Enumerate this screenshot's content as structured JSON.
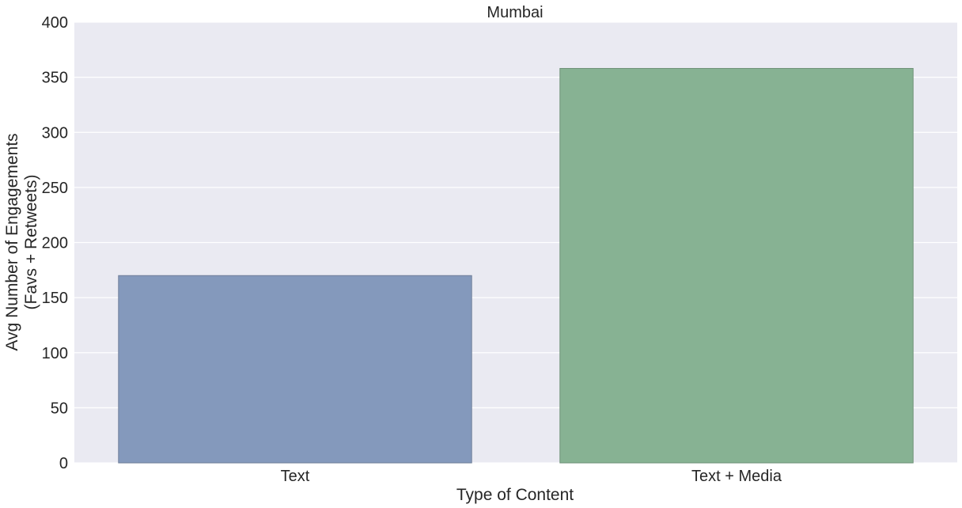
{
  "chart_data": {
    "type": "bar",
    "title": "Mumbai",
    "xlabel": "Type of Content",
    "ylabel_lines": [
      "Avg Number of Engagements",
      "(Favs + Retweets)"
    ],
    "categories": [
      "Text",
      "Text + Media"
    ],
    "values": [
      170,
      358
    ],
    "ylim": [
      0,
      400
    ],
    "yticks": [
      0,
      50,
      100,
      150,
      200,
      250,
      300,
      350,
      400
    ],
    "grid": true,
    "legend": "none"
  },
  "colors": {
    "plot_background": "#eaeaf2",
    "grid": "#ffffff",
    "text": "#262626",
    "bars": [
      "#8499bc",
      "#87b293"
    ],
    "bar_edges": [
      "#6f7f99",
      "#6f9278"
    ]
  }
}
